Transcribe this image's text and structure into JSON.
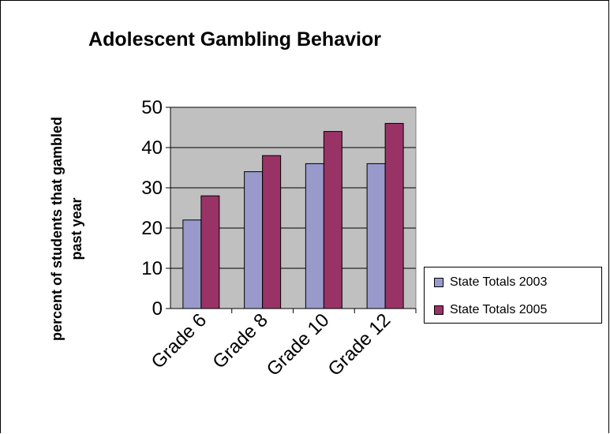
{
  "chart_data": {
    "type": "bar",
    "title": "Adolescent Gambling Behavior",
    "ylabel": "percent of students that gambled\npast year",
    "xlabel": "",
    "categories": [
      "Grade 6",
      "Grade 8",
      "Grade 10",
      "Grade 12"
    ],
    "series": [
      {
        "name": "State Totals 2003",
        "values": [
          22,
          34,
          36,
          36
        ],
        "color": "#9999CC"
      },
      {
        "name": "State Totals 2005",
        "values": [
          28,
          38,
          44,
          46
        ],
        "color": "#993366"
      }
    ],
    "ylim": [
      0,
      50
    ],
    "yticks": [
      "0",
      "10",
      "20",
      "30",
      "40",
      "50"
    ],
    "grid": true,
    "plot_background": "#C0C0C0",
    "legend_position": "right"
  }
}
